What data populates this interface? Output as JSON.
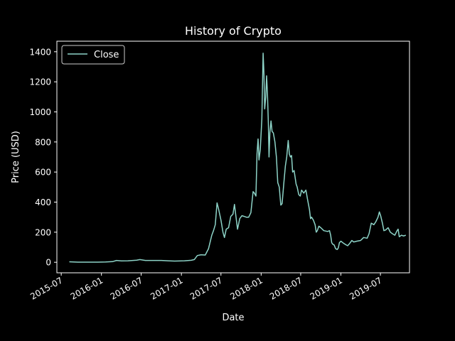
{
  "chart_data": {
    "type": "line",
    "title": "History of Crypto",
    "xlabel": "Date",
    "ylabel": "Price (USD)",
    "legend": {
      "placement": "top-left",
      "entries": [
        "Close"
      ]
    },
    "grid": false,
    "xlim": [
      "2015-06-11",
      "2019-11-11"
    ],
    "ylim": [
      -70,
      1470
    ],
    "x_ticks": [
      "2015-07",
      "2016-01",
      "2016-07",
      "2017-01",
      "2017-07",
      "2018-01",
      "2018-07",
      "2019-01",
      "2019-07"
    ],
    "y_ticks": [
      0,
      200,
      400,
      600,
      800,
      1000,
      1200,
      1400
    ],
    "series": [
      {
        "name": "Close",
        "color": "#8dd3c7",
        "points": [
          [
            "2015-08-07",
            3
          ],
          [
            "2015-09-15",
            1
          ],
          [
            "2015-11-01",
            1
          ],
          [
            "2015-12-15",
            1
          ],
          [
            "2016-01-20",
            2
          ],
          [
            "2016-02-20",
            4
          ],
          [
            "2016-03-10",
            12
          ],
          [
            "2016-04-01",
            9
          ],
          [
            "2016-05-01",
            10
          ],
          [
            "2016-06-10",
            14
          ],
          [
            "2016-06-25",
            18
          ],
          [
            "2016-07-20",
            12
          ],
          [
            "2016-09-01",
            12
          ],
          [
            "2016-10-01",
            12
          ],
          [
            "2016-11-01",
            10
          ],
          [
            "2016-12-01",
            8
          ],
          [
            "2017-01-15",
            10
          ],
          [
            "2017-02-15",
            13
          ],
          [
            "2017-03-01",
            18
          ],
          [
            "2017-03-15",
            45
          ],
          [
            "2017-04-01",
            50
          ],
          [
            "2017-04-20",
            48
          ],
          [
            "2017-05-05",
            90
          ],
          [
            "2017-05-20",
            180
          ],
          [
            "2017-05-28",
            210
          ],
          [
            "2017-06-05",
            250
          ],
          [
            "2017-06-13",
            395
          ],
          [
            "2017-06-20",
            355
          ],
          [
            "2017-07-01",
            280
          ],
          [
            "2017-07-10",
            200
          ],
          [
            "2017-07-17",
            165
          ],
          [
            "2017-07-25",
            220
          ],
          [
            "2017-08-05",
            230
          ],
          [
            "2017-08-15",
            305
          ],
          [
            "2017-08-25",
            320
          ],
          [
            "2017-09-01",
            385
          ],
          [
            "2017-09-08",
            300
          ],
          [
            "2017-09-15",
            220
          ],
          [
            "2017-09-25",
            290
          ],
          [
            "2017-10-05",
            310
          ],
          [
            "2017-10-15",
            305
          ],
          [
            "2017-10-25",
            300
          ],
          [
            "2017-11-05",
            300
          ],
          [
            "2017-11-15",
            330
          ],
          [
            "2017-11-25",
            470
          ],
          [
            "2017-12-01",
            460
          ],
          [
            "2017-12-08",
            440
          ],
          [
            "2017-12-13",
            720
          ],
          [
            "2017-12-18",
            820
          ],
          [
            "2017-12-22",
            680
          ],
          [
            "2017-12-28",
            750
          ],
          [
            "2018-01-04",
            950
          ],
          [
            "2018-01-10",
            1390
          ],
          [
            "2018-01-14",
            1250
          ],
          [
            "2018-01-17",
            1020
          ],
          [
            "2018-01-22",
            1100
          ],
          [
            "2018-01-26",
            1240
          ],
          [
            "2018-01-30",
            1120
          ],
          [
            "2018-02-03",
            920
          ],
          [
            "2018-02-06",
            700
          ],
          [
            "2018-02-10",
            860
          ],
          [
            "2018-02-15",
            940
          ],
          [
            "2018-02-20",
            870
          ],
          [
            "2018-02-26",
            860
          ],
          [
            "2018-03-05",
            800
          ],
          [
            "2018-03-12",
            700
          ],
          [
            "2018-03-18",
            530
          ],
          [
            "2018-03-25",
            500
          ],
          [
            "2018-04-01",
            380
          ],
          [
            "2018-04-07",
            390
          ],
          [
            "2018-04-15",
            530
          ],
          [
            "2018-04-22",
            640
          ],
          [
            "2018-04-28",
            700
          ],
          [
            "2018-05-05",
            810
          ],
          [
            "2018-05-10",
            720
          ],
          [
            "2018-05-15",
            700
          ],
          [
            "2018-05-20",
            710
          ],
          [
            "2018-05-25",
            600
          ],
          [
            "2018-06-01",
            610
          ],
          [
            "2018-06-10",
            520
          ],
          [
            "2018-06-15",
            500
          ],
          [
            "2018-06-22",
            450
          ],
          [
            "2018-06-29",
            440
          ],
          [
            "2018-07-05",
            480
          ],
          [
            "2018-07-15",
            460
          ],
          [
            "2018-07-25",
            480
          ],
          [
            "2018-08-01",
            420
          ],
          [
            "2018-08-10",
            350
          ],
          [
            "2018-08-15",
            290
          ],
          [
            "2018-08-20",
            300
          ],
          [
            "2018-08-28",
            280
          ],
          [
            "2018-09-05",
            250
          ],
          [
            "2018-09-10",
            200
          ],
          [
            "2018-09-15",
            210
          ],
          [
            "2018-09-22",
            240
          ],
          [
            "2018-10-01",
            230
          ],
          [
            "2018-10-15",
            210
          ],
          [
            "2018-11-01",
            205
          ],
          [
            "2018-11-10",
            210
          ],
          [
            "2018-11-15",
            180
          ],
          [
            "2018-11-20",
            130
          ],
          [
            "2018-11-25",
            120
          ],
          [
            "2018-12-01",
            115
          ],
          [
            "2018-12-08",
            90
          ],
          [
            "2018-12-15",
            85
          ],
          [
            "2018-12-20",
            95
          ],
          [
            "2018-12-25",
            130
          ],
          [
            "2019-01-01",
            140
          ],
          [
            "2019-01-10",
            130
          ],
          [
            "2019-01-20",
            120
          ],
          [
            "2019-02-01",
            110
          ],
          [
            "2019-02-10",
            125
          ],
          [
            "2019-02-20",
            145
          ],
          [
            "2019-03-01",
            135
          ],
          [
            "2019-03-15",
            140
          ],
          [
            "2019-04-01",
            145
          ],
          [
            "2019-04-15",
            165
          ],
          [
            "2019-05-01",
            160
          ],
          [
            "2019-05-10",
            190
          ],
          [
            "2019-05-20",
            260
          ],
          [
            "2019-06-01",
            250
          ],
          [
            "2019-06-10",
            270
          ],
          [
            "2019-06-20",
            300
          ],
          [
            "2019-06-26",
            335
          ],
          [
            "2019-07-02",
            310
          ],
          [
            "2019-07-10",
            260
          ],
          [
            "2019-07-17",
            210
          ],
          [
            "2019-07-25",
            215
          ],
          [
            "2019-08-05",
            230
          ],
          [
            "2019-08-15",
            200
          ],
          [
            "2019-08-25",
            190
          ],
          [
            "2019-09-05",
            180
          ],
          [
            "2019-09-15",
            210
          ],
          [
            "2019-09-20",
            220
          ],
          [
            "2019-09-25",
            170
          ],
          [
            "2019-10-05",
            180
          ],
          [
            "2019-10-15",
            175
          ],
          [
            "2019-10-25",
            180
          ]
        ]
      }
    ]
  }
}
